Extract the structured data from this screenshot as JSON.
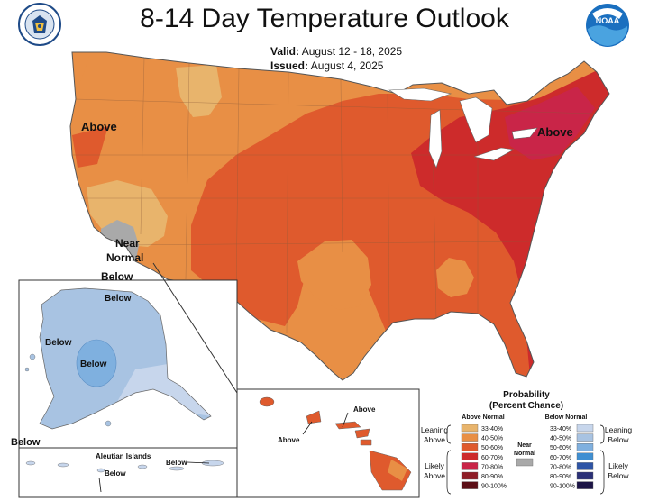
{
  "title": "8-14 Day Temperature Outlook",
  "valid_label": "Valid:",
  "valid_value": "August 12 - 18, 2025",
  "issued_label": "Issued:",
  "issued_value": "August 4, 2025",
  "logos": {
    "left": "commerce-seal",
    "right": "noaa-logo",
    "noaa_text": "NOAA"
  },
  "map_labels": {
    "conus_above_west": "Above",
    "conus_above_northeast": "Above",
    "near_normal_1": "Near",
    "near_normal_2": "Normal",
    "below_socal": "Below",
    "alaska_below_1": "Below",
    "alaska_below_2": "Below",
    "alaska_below_3": "Below",
    "alaska_below_4": "Below",
    "aleutian_title": "Aleutian Islands",
    "aleutian_below_1": "Below",
    "aleutian_below_2": "Below",
    "hawaii_above_1": "Above",
    "hawaii_above_2": "Above"
  },
  "legend": {
    "title_1": "Probability",
    "title_2": "(Percent Chance)",
    "above_header": "Above Normal",
    "below_header": "Below Normal",
    "leaning_above": [
      "Leaning",
      "Above"
    ],
    "likely_above": [
      "Likely",
      "Above"
    ],
    "leaning_below": [
      "Leaning",
      "Below"
    ],
    "likely_below": [
      "Likely",
      "Below"
    ],
    "near_normal": [
      "Near",
      "Normal"
    ],
    "near_normal_color": "#a9a9a9",
    "above_bins": [
      {
        "label": "33-40%",
        "color": "#e8b46c"
      },
      {
        "label": "40-50%",
        "color": "#e88f45"
      },
      {
        "label": "50-60%",
        "color": "#df5a2d"
      },
      {
        "label": "60-70%",
        "color": "#cd2b2b"
      },
      {
        "label": "70-80%",
        "color": "#c92548"
      },
      {
        "label": "80-90%",
        "color": "#8e1c26"
      },
      {
        "label": "90-100%",
        "color": "#5c0f16"
      }
    ],
    "below_bins": [
      {
        "label": "33-40%",
        "color": "#c7d6ec"
      },
      {
        "label": "40-50%",
        "color": "#a8c3e2"
      },
      {
        "label": "50-60%",
        "color": "#7fb0df"
      },
      {
        "label": "60-70%",
        "color": "#3f8fd2"
      },
      {
        "label": "70-80%",
        "color": "#2e54a6"
      },
      {
        "label": "80-90%",
        "color": "#2b3077"
      },
      {
        "label": "90-100%",
        "color": "#1c1446"
      }
    ]
  }
}
